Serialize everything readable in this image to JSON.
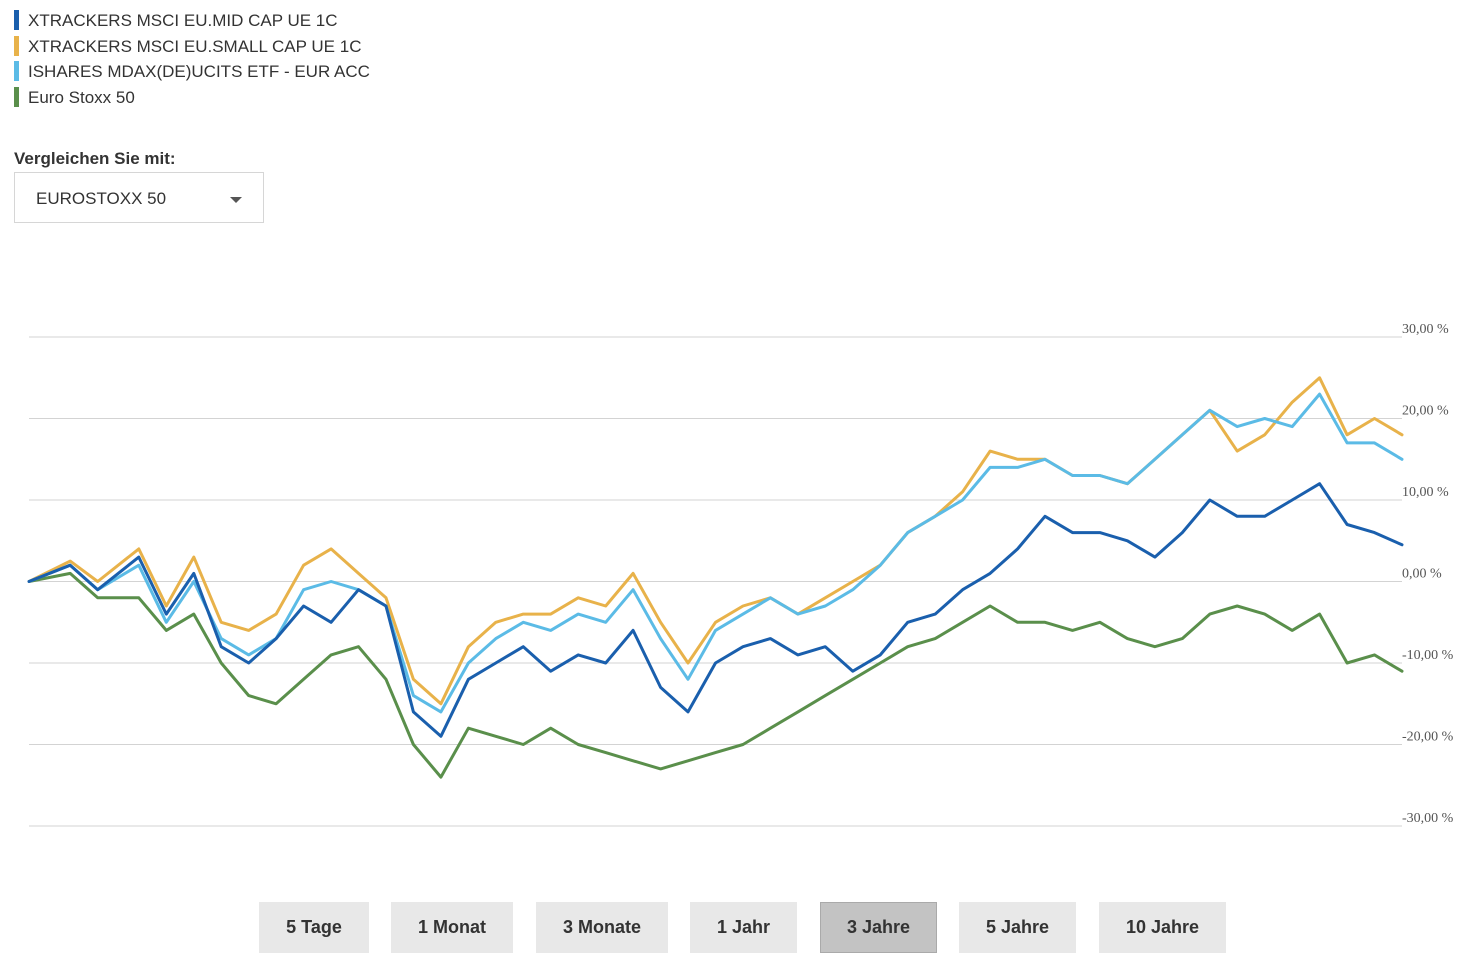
{
  "legend": [
    {
      "label": "XTRACKERS MSCI EU.MID CAP UE 1C",
      "color": "#1a5fad"
    },
    {
      "label": "XTRACKERS MSCI EU.SMALL CAP UE 1C",
      "color": "#e8b24a"
    },
    {
      "label": "ISHARES MDAX(DE)UCITS ETF - EUR ACC",
      "color": "#5bbbe6"
    },
    {
      "label": "Euro Stoxx 50",
      "color": "#5a8f4b"
    }
  ],
  "compare": {
    "label": "Vergleichen Sie mit:",
    "selected": "EUROSTOXX 50"
  },
  "periods": [
    {
      "label": "5 Tage",
      "active": false
    },
    {
      "label": "1 Monat",
      "active": false
    },
    {
      "label": "3 Monate",
      "active": false
    },
    {
      "label": "1 Jahr",
      "active": false
    },
    {
      "label": "3 Jahre",
      "active": true
    },
    {
      "label": "5 Jahre",
      "active": false
    },
    {
      "label": "10 Jahre",
      "active": false
    }
  ],
  "chart_data": {
    "type": "line",
    "title": "",
    "xlabel": "",
    "ylabel": "",
    "ylim": [
      -30,
      30
    ],
    "yticks": [
      30,
      20,
      10,
      0,
      -10,
      -20,
      -30
    ],
    "ytick_labels": [
      "30,00 %",
      "20,00 %",
      "10,00 %",
      "0,00 %",
      "-10,00 %",
      "-20,00 %",
      "-30,00 %"
    ],
    "grid": true,
    "x": [
      0,
      3,
      5,
      8,
      10,
      12,
      14,
      16,
      18,
      20,
      22,
      24,
      26,
      28,
      30,
      32,
      34,
      36,
      38,
      40,
      42,
      44,
      46,
      48,
      50,
      52,
      54,
      56,
      58,
      60,
      62,
      64,
      66,
      68,
      70,
      72,
      74,
      76,
      78,
      80,
      82,
      84,
      86,
      88,
      90,
      92,
      94,
      96,
      98,
      100
    ],
    "series": [
      {
        "name": "XTRACKERS MSCI EU.MID CAP UE 1C",
        "color": "#1a5fad",
        "values": [
          0,
          2,
          -1,
          3,
          -4,
          1,
          -8,
          -10,
          -7,
          -3,
          -5,
          -1,
          -3,
          -16,
          -19,
          -12,
          -10,
          -8,
          -11,
          -9,
          -10,
          -6,
          -13,
          -16,
          -10,
          -8,
          -7,
          -9,
          -8,
          -11,
          -9,
          -5,
          -4,
          -1,
          1,
          4,
          8,
          6,
          6,
          5,
          3,
          6,
          10,
          8,
          8,
          10,
          12,
          7,
          6,
          4.5
        ]
      },
      {
        "name": "XTRACKERS MSCI EU.SMALL CAP UE 1C",
        "color": "#e8b24a",
        "values": [
          0,
          2.5,
          0,
          4,
          -3,
          3,
          -5,
          -6,
          -4,
          2,
          4,
          1,
          -2,
          -12,
          -15,
          -8,
          -5,
          -4,
          -4,
          -2,
          -3,
          1,
          -5,
          -10,
          -5,
          -3,
          -2,
          -4,
          -2,
          0,
          2,
          6,
          8,
          11,
          16,
          15,
          15,
          13,
          13,
          12,
          15,
          18,
          21,
          16,
          18,
          22,
          25,
          18,
          20,
          18
        ]
      },
      {
        "name": "ISHARES MDAX(DE)UCITS ETF - EUR ACC",
        "color": "#5bbbe6",
        "values": [
          0,
          2,
          -1,
          2,
          -5,
          0,
          -7,
          -9,
          -7,
          -1,
          0,
          -1,
          -3,
          -14,
          -16,
          -10,
          -7,
          -5,
          -6,
          -4,
          -5,
          -1,
          -7,
          -12,
          -6,
          -4,
          -2,
          -4,
          -3,
          -1,
          2,
          6,
          8,
          10,
          14,
          14,
          15,
          13,
          13,
          12,
          15,
          18,
          21,
          19,
          20,
          19,
          23,
          17,
          17,
          15
        ]
      },
      {
        "name": "Euro Stoxx 50",
        "color": "#5a8f4b",
        "values": [
          0,
          1,
          -2,
          -2,
          -6,
          -4,
          -10,
          -14,
          -15,
          -12,
          -9,
          -8,
          -12,
          -20,
          -24,
          -18,
          -19,
          -20,
          -18,
          -20,
          -21,
          -22,
          -23,
          -22,
          -21,
          -20,
          -18,
          -16,
          -14,
          -12,
          -10,
          -8,
          -7,
          -5,
          -3,
          -5,
          -5,
          -6,
          -5,
          -7,
          -8,
          -7,
          -4,
          -3,
          -4,
          -6,
          -4,
          -10,
          -9,
          -11
        ]
      }
    ]
  }
}
